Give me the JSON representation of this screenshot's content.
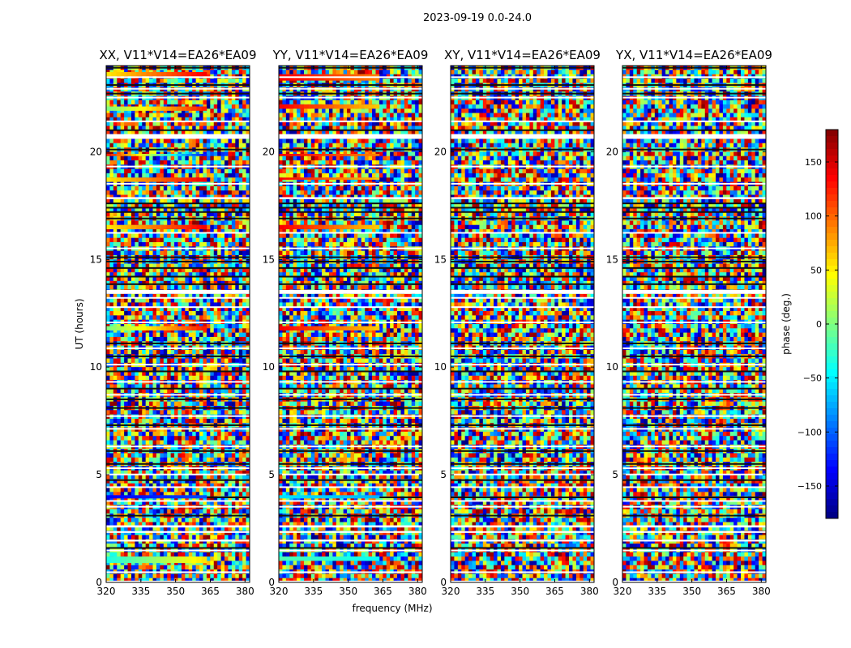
{
  "figure": {
    "suptitle": "2023-09-19 0.0-24.0",
    "xlabel": "frequency (MHz)",
    "ylabel": "UT (hours)",
    "colorbar_label": "phase (deg.)",
    "colormap": "jet"
  },
  "chart_data": {
    "type": "heatmap",
    "x": {
      "label": "frequency (MHz)",
      "range": [
        320,
        382
      ],
      "ticks": [
        320,
        335,
        350,
        365,
        380
      ]
    },
    "y": {
      "label": "UT (hours)",
      "range": [
        0,
        24
      ],
      "ticks": [
        0,
        5,
        10,
        15,
        20
      ]
    },
    "colorbar": {
      "label": "phase (deg.)",
      "range": [
        -180,
        180
      ],
      "ticks": [
        -150,
        -100,
        -50,
        0,
        50,
        100,
        150
      ]
    },
    "panels": [
      {
        "title": "XX, V11*V14=EA26*EA09",
        "coherent_bands": [
          [
            0.9,
            1.2,
            "cyan-yellow"
          ],
          [
            3.9,
            4.05,
            "blue"
          ],
          [
            11.7,
            11.9,
            "green-red"
          ],
          [
            16.4,
            16.6,
            "yellow-red"
          ],
          [
            18.6,
            18.8,
            "yellow-red"
          ],
          [
            19.8,
            19.9,
            "red-blue"
          ],
          [
            21.9,
            22.1,
            "green-red"
          ],
          [
            23.5,
            23.7,
            "yellow-red"
          ]
        ]
      },
      {
        "title": "YY, V11*V14=EA26*EA09",
        "coherent_bands": [
          [
            1.0,
            1.2,
            "green-cyan"
          ],
          [
            3.9,
            4.05,
            "cyan"
          ],
          [
            11.7,
            11.9,
            "red-yellow"
          ],
          [
            16.4,
            16.6,
            "red-yellow"
          ],
          [
            18.7,
            18.8,
            "red-yellow"
          ],
          [
            19.8,
            19.9,
            "red-orange"
          ],
          [
            22.0,
            22.2,
            "red-yellow"
          ],
          [
            23.3,
            23.6,
            "red-orange"
          ]
        ]
      },
      {
        "title": "XY, V11*V14=EA26*EA09",
        "coherent_bands": []
      },
      {
        "title": "YX, V11*V14=EA26*EA09",
        "coherent_bands": []
      }
    ],
    "gap_hours": [
      0.0,
      0.45,
      1.45,
      1.9,
      2.3,
      2.55,
      3.5,
      3.75,
      4.4,
      5.0,
      5.3,
      6.3,
      7.1,
      7.7,
      8.7,
      9.3,
      10.1,
      10.85,
      12.05,
      12.75,
      13.2,
      13.4,
      15.5,
      16.2,
      17.8,
      18.5,
      19.3,
      20.6,
      21.4,
      22.5,
      22.9,
      23.45
    ],
    "gap_widths": [
      0.08,
      0.06,
      0.07,
      0.08,
      0.08,
      0.1,
      0.05,
      0.07,
      0.06,
      0.05,
      0.04,
      0.05,
      0.07,
      0.06,
      0.05,
      0.05,
      0.05,
      0.06,
      0.06,
      0.07,
      0.05,
      0.18,
      0.05,
      0.07,
      0.09,
      0.05,
      0.05,
      0.22,
      0.05,
      0.05,
      0.06,
      0.05
    ],
    "dark_row_hours": [
      1.6,
      3.1,
      3.95,
      4.75,
      5.5,
      6.1,
      7.3,
      8.1,
      8.5,
      9.0,
      9.8,
      10.5,
      11.1,
      13.85,
      14.2,
      14.6,
      14.9,
      15.1,
      16.9,
      17.2,
      17.4,
      17.6,
      20.1,
      21.0,
      22.7,
      23.1,
      23.9
    ]
  }
}
